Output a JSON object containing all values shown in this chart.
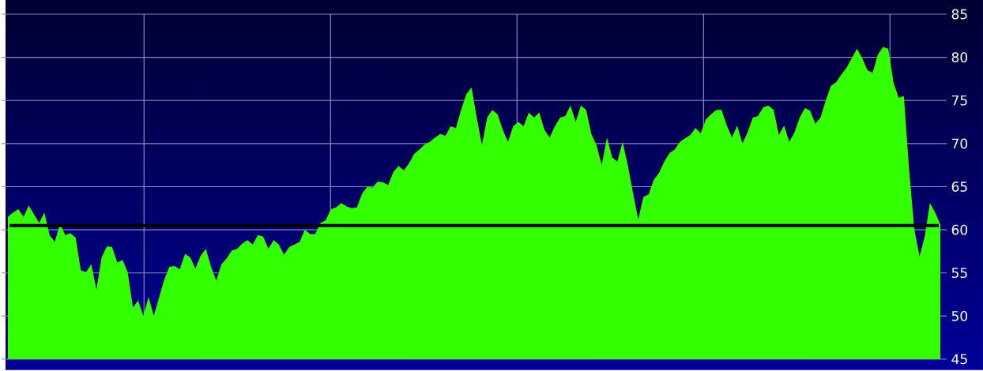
{
  "chart_data": {
    "type": "area",
    "color": "#33ff00",
    "categories": [
      null,
      null,
      null,
      null,
      null,
      null,
      null,
      null,
      null,
      null,
      null,
      null,
      null,
      null,
      null,
      null,
      null,
      null,
      null,
      null,
      null,
      null,
      null,
      null,
      null,
      null,
      null,
      null,
      null,
      null,
      null,
      null,
      null,
      null,
      null,
      null,
      null,
      null,
      null,
      null,
      null,
      null,
      null,
      null,
      null,
      null,
      null,
      null,
      null,
      null,
      null,
      null,
      null,
      null,
      null,
      null,
      null,
      null,
      null,
      null,
      null,
      null,
      null,
      null,
      null,
      null,
      null,
      null,
      null,
      null,
      null,
      null,
      null,
      null,
      null,
      null,
      null,
      null,
      null,
      null,
      null,
      null,
      null,
      null,
      null,
      null,
      null,
      null,
      null,
      null,
      null,
      null,
      null,
      null,
      null,
      null,
      null,
      null,
      null,
      null,
      null,
      null,
      null,
      null,
      null,
      null,
      null,
      null,
      null,
      null,
      null,
      null,
      null,
      null,
      null,
      null,
      null,
      null,
      null,
      null,
      null,
      null,
      null,
      null,
      null,
      null,
      null,
      null,
      null,
      null,
      null,
      null,
      null,
      null,
      null,
      null,
      null,
      null,
      null,
      null,
      null,
      null,
      null,
      null,
      null,
      null,
      null,
      null,
      null,
      null,
      null,
      null,
      null,
      null,
      null,
      null,
      null,
      null,
      null,
      null,
      null,
      null,
      null,
      null,
      null,
      null,
      null,
      null,
      null,
      null,
      null,
      null,
      null,
      null,
      null,
      null,
      null,
      null,
      null,
      null
    ],
    "values": [
      61.5,
      62.0,
      62.4,
      61.5,
      62.8,
      61.8,
      60.8,
      62.0,
      59.4,
      58.6,
      60.7,
      59.4,
      59.6,
      59.1,
      55.3,
      55.1,
      56.0,
      53.1,
      56.8,
      58.1,
      58.0,
      56.2,
      56.5,
      55.1,
      51.0,
      51.8,
      50.0,
      52.2,
      50.0,
      52.1,
      54.2,
      55.7,
      55.8,
      55.4,
      57.2,
      56.8,
      55.5,
      57.0,
      57.8,
      55.7,
      54.1,
      56.0,
      56.7,
      57.6,
      57.8,
      58.4,
      58.8,
      58.3,
      59.4,
      59.2,
      57.8,
      58.8,
      58.3,
      57.1,
      58.0,
      58.3,
      58.6,
      60.0,
      59.5,
      59.5,
      60.8,
      61.1,
      62.4,
      62.6,
      63.1,
      62.7,
      62.5,
      62.6,
      64.2,
      65.0,
      64.9,
      65.6,
      65.5,
      65.2,
      66.7,
      67.4,
      66.9,
      67.7,
      68.8,
      69.3,
      69.9,
      70.2,
      70.7,
      71.1,
      70.9,
      72.0,
      71.8,
      73.9,
      75.7,
      76.5,
      73.0,
      69.8,
      73.0,
      73.9,
      73.4,
      71.6,
      70.2,
      72.0,
      72.5,
      72.0,
      73.6,
      73.0,
      73.6,
      71.6,
      70.7,
      72.0,
      73.0,
      73.2,
      74.4,
      72.5,
      74.4,
      73.9,
      71.1,
      69.8,
      67.5,
      70.7,
      68.4,
      67.9,
      70.2,
      67.5,
      64.3,
      61.2,
      63.8,
      64.1,
      65.8,
      66.6,
      67.9,
      68.9,
      69.3,
      70.2,
      70.6,
      71.0,
      71.8,
      71.2,
      72.8,
      73.4,
      73.9,
      73.9,
      72.1,
      70.7,
      72.1,
      70.0,
      71.3,
      73.0,
      73.2,
      74.2,
      74.4,
      73.9,
      71.0,
      72.1,
      70.2,
      71.3,
      73.0,
      74.1,
      73.8,
      72.3,
      73.0,
      75.0,
      76.7,
      77.1,
      78.0,
      78.8,
      79.9,
      81.0,
      79.9,
      78.5,
      78.2,
      80.3,
      81.2,
      81.0,
      77.1,
      75.3,
      75.5,
      67.0,
      60.1,
      56.9,
      59.2,
      63.1,
      62.0,
      60.6
    ],
    "ylim": [
      45,
      85
    ],
    "yticks": [
      45,
      50,
      55,
      60,
      65,
      70,
      75,
      80,
      85
    ],
    "grid": true,
    "tick_labels": "y",
    "ref_lines": [
      {
        "axis": "y",
        "value": 60.5,
        "color": "#000000"
      }
    ]
  }
}
